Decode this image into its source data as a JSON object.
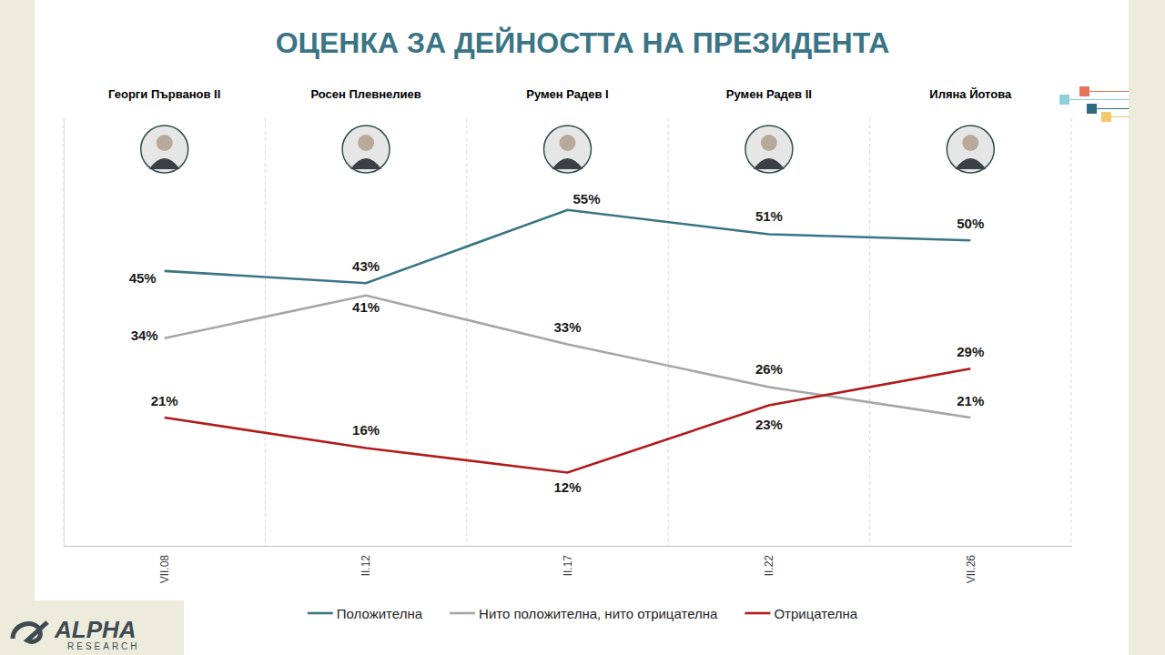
{
  "chart_data": {
    "type": "line",
    "title": "ОЦЕНКА ЗА ДЕЙНОСТТА НА ПРЕЗИДЕНТА",
    "annotations": [
      "Георги Първанов II",
      "Росен Плевнелиев",
      "Румен Радев I",
      "Румен Радев II",
      "Иляна Йотова"
    ],
    "categories": [
      "VII.08",
      "II.12",
      "II.17",
      "II.22",
      "VII.26"
    ],
    "series": [
      {
        "name": "Положителна",
        "color": "#3a7585",
        "values": [
          45,
          43,
          55,
          51,
          50
        ],
        "value_labels": [
          "45%",
          "43%",
          "55%",
          "51%",
          "50%"
        ]
      },
      {
        "name": "Нито положителна, нито отрицателна",
        "color": "#a6a6a6",
        "values": [
          34,
          41,
          33,
          26,
          21
        ],
        "value_labels": [
          "34%",
          "41%",
          "33%",
          "26%",
          "21%"
        ]
      },
      {
        "name": "Отрицателна",
        "color": "#b01c1c",
        "values": [
          21,
          16,
          12,
          23,
          29
        ],
        "value_labels": [
          "21%",
          "16%",
          "12%",
          "23%",
          "29%"
        ]
      }
    ],
    "ylim": [
      0,
      70
    ],
    "grid": true,
    "legend": "bottom",
    "data_labels": true,
    "tick_labels": "x"
  },
  "logo": [
    "ALPHA",
    "RESEARCH"
  ]
}
